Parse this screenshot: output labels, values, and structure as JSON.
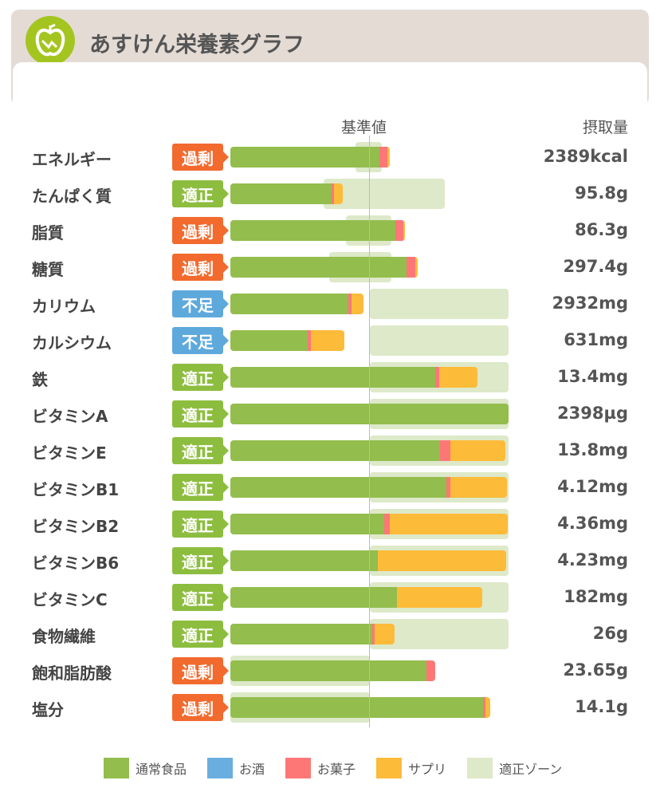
{
  "header": {
    "title": "あすけん栄養素グラフ"
  },
  "columns": {
    "reference": "基準値",
    "intake": "摂取量"
  },
  "colors": {
    "normal": "#93bd4d",
    "alcohol": "#6aaee0",
    "snack": "#fd7777",
    "supplement": "#fdbb3a",
    "zone": "#dde9c9",
    "over": "#f26a2e",
    "ok": "#8dbd3f",
    "under": "#5ea9dc"
  },
  "chart_data": {
    "type": "bar",
    "xlabel": "基準値 (%)",
    "xlim": [
      0,
      200
    ],
    "legend": [
      "通常食品",
      "お酒",
      "お菓子",
      "サプリ",
      "適正ゾーン"
    ],
    "rows": [
      {
        "name": "エネルギー",
        "status": "過剰",
        "kind": "over",
        "value": "2389kcal",
        "normal": 107,
        "snack": 5.7,
        "supplement": 1.7,
        "zone": [
          90,
          109
        ]
      },
      {
        "name": "たんぱく質",
        "status": "適正",
        "kind": "ok",
        "value": "95.8g",
        "normal": 72.8,
        "snack": 1.7,
        "supplement": 6.3,
        "zone": [
          67,
          154
        ]
      },
      {
        "name": "脂質",
        "status": "過剰",
        "kind": "over",
        "value": "86.3g",
        "normal": 118.6,
        "snack": 5.7,
        "supplement": 1.1,
        "zone": [
          83,
          116
        ]
      },
      {
        "name": "糖質",
        "status": "過剰",
        "kind": "over",
        "value": "297.4g",
        "normal": 126.6,
        "snack": 6.3,
        "supplement": 1.7,
        "zone": [
          71,
          116
        ]
      },
      {
        "name": "カリウム",
        "status": "不足",
        "kind": "under",
        "value": "2932mg",
        "normal": 84.8,
        "snack": 2.3,
        "supplement": 8.6,
        "zone": [
          100,
          200
        ]
      },
      {
        "name": "カルシウム",
        "status": "不足",
        "kind": "under",
        "value": "631mg",
        "normal": 55.6,
        "snack": 2.3,
        "supplement": 24,
        "zone": [
          100,
          200
        ]
      },
      {
        "name": "鉄",
        "status": "適正",
        "kind": "ok",
        "value": "13.4mg",
        "normal": 147.3,
        "snack": 2.9,
        "supplement": 27.5,
        "zone": [
          100,
          200
        ]
      },
      {
        "name": "ビタミンA",
        "status": "適正",
        "kind": "ok",
        "value": "2398µg",
        "normal": 200,
        "snack": 0,
        "supplement": 0,
        "zone": [
          100,
          200
        ]
      },
      {
        "name": "ビタミンE",
        "status": "適正",
        "kind": "ok",
        "value": "13.8mg",
        "normal": 150.7,
        "snack": 7.4,
        "supplement": 39.5,
        "zone": [
          100,
          200
        ]
      },
      {
        "name": "ビタミンB1",
        "status": "適正",
        "kind": "ok",
        "value": "4.12mg",
        "normal": 155.3,
        "snack": 2.9,
        "supplement": 40.7,
        "zone": [
          100,
          200
        ]
      },
      {
        "name": "ビタミンB2",
        "status": "適正",
        "kind": "ok",
        "value": "4.36mg",
        "normal": 110.6,
        "snack": 4,
        "supplement": 84.8,
        "zone": [
          100,
          200
        ]
      },
      {
        "name": "ビタミンB6",
        "status": "適正",
        "kind": "ok",
        "value": "4.23mg",
        "normal": 106,
        "snack": 0,
        "supplement": 92.3,
        "zone": [
          100,
          200
        ]
      },
      {
        "name": "ビタミンC",
        "status": "適正",
        "kind": "ok",
        "value": "182mg",
        "normal": 119.8,
        "snack": 0,
        "supplement": 61.3,
        "zone": [
          100,
          200
        ]
      },
      {
        "name": "食物繊維",
        "status": "適正",
        "kind": "ok",
        "value": "26g",
        "normal": 102,
        "snack": 1.7,
        "supplement": 14.3,
        "zone": [
          100,
          200
        ]
      },
      {
        "name": "飽和脂肪酸",
        "status": "過剰",
        "kind": "over",
        "value": "23.65g",
        "normal": 141,
        "snack": 6.3,
        "supplement": 0,
        "zone": [
          0,
          100
        ]
      },
      {
        "name": "塩分",
        "status": "過剰",
        "kind": "over",
        "value": "14.1g",
        "normal": 181.7,
        "snack": 1.7,
        "supplement": 3.4,
        "zone": [
          0,
          100
        ]
      }
    ]
  }
}
